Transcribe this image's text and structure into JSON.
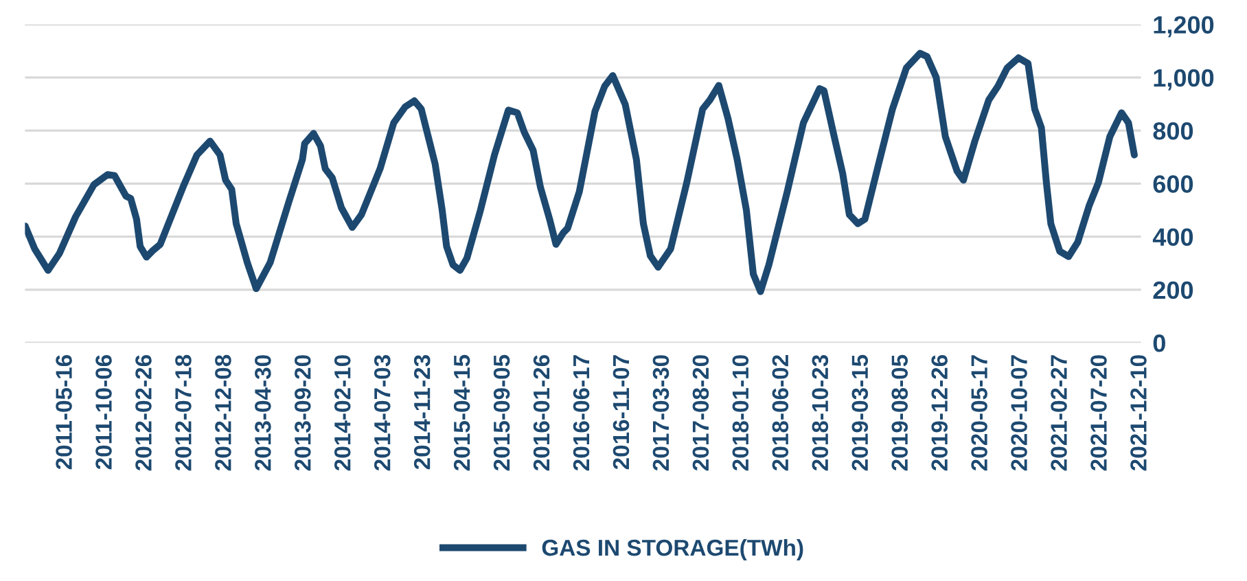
{
  "chart_data": {
    "type": "line",
    "x": [
      "2010-12-21",
      "2011-01-24",
      "2011-03-13",
      "2011-04-23",
      "2011-06-20",
      "2011-08-25",
      "2011-10-13",
      "2011-11-07",
      "2011-12-18",
      "2012-01-04",
      "2012-01-25",
      "2012-02-07",
      "2012-03-01",
      "2012-03-25",
      "2012-04-19",
      "2012-07-10",
      "2012-08-29",
      "2012-10-15",
      "2012-11-20",
      "2012-12-10",
      "2013-01-01",
      "2013-01-17",
      "2013-02-26",
      "2013-03-30",
      "2013-05-19",
      "2013-07-24",
      "2013-09-12",
      "2013-09-20",
      "2013-10-22",
      "2013-11-16",
      "2013-12-03",
      "2013-12-28",
      "2014-01-30",
      "2014-03-10",
      "2014-04-12",
      "2014-06-18",
      "2014-08-06",
      "2014-09-16",
      "2014-10-19",
      "2014-11-13",
      "2014-12-08",
      "2015-01-02",
      "2015-01-27",
      "2015-02-12",
      "2015-03-07",
      "2015-04-01",
      "2015-04-26",
      "2015-06-14",
      "2015-08-03",
      "2015-09-22",
      "2015-10-24",
      "2015-11-18",
      "2015-12-20",
      "2016-01-15",
      "2016-02-17",
      "2016-03-11",
      "2016-04-06",
      "2016-04-22",
      "2016-06-03",
      "2016-07-29",
      "2016-09-02",
      "2016-10-01",
      "2016-11-15",
      "2016-12-25",
      "2017-01-19",
      "2017-02-13",
      "2017-03-13",
      "2017-04-27",
      "2017-06-24",
      "2017-08-20",
      "2017-09-15",
      "2017-10-17",
      "2017-11-19",
      "2017-12-22",
      "2018-01-24",
      "2018-02-18",
      "2018-03-16",
      "2018-04-15",
      "2018-06-20",
      "2018-08-17",
      "2018-10-14",
      "2018-10-30",
      "2018-12-02",
      "2019-01-05",
      "2019-01-29",
      "2019-03-01",
      "2019-03-26",
      "2019-05-14",
      "2019-07-03",
      "2019-08-22",
      "2019-10-10",
      "2019-11-04",
      "2019-12-07",
      "2020-01-09",
      "2020-02-20",
      "2020-03-14",
      "2020-04-24",
      "2020-06-13",
      "2020-07-16",
      "2020-08-18",
      "2020-09-28",
      "2020-11-01",
      "2020-11-25",
      "2020-12-19",
      "2021-01-06",
      "2021-01-22",
      "2021-02-23",
      "2021-03-27",
      "2021-04-29",
      "2021-06-09",
      "2021-07-12",
      "2021-08-22",
      "2021-10-03",
      "2021-10-28",
      "2021-11-18"
    ],
    "series": [
      {
        "name": "GAS IN STORAGE(TWh)",
        "color": "#1d4970",
        "values": [
          440,
          354,
          273,
          337,
          475,
          596,
          634,
          630,
          553,
          544,
          466,
          363,
          323,
          349,
          371,
          587,
          708,
          760,
          708,
          613,
          578,
          449,
          302,
          204,
          302,
          527,
          691,
          751,
          789,
          742,
          656,
          622,
          509,
          435,
          483,
          656,
          829,
          889,
          912,
          881,
          777,
          673,
          501,
          363,
          294,
          273,
          319,
          501,
          708,
          877,
          867,
          794,
          725,
          587,
          466,
          371,
          414,
          432,
          570,
          872,
          967,
          1007,
          898,
          691,
          449,
          328,
          285,
          354,
          604,
          881,
          915,
          970,
          846,
          691,
          501,
          259,
          193,
          294,
          570,
          829,
          958,
          950,
          794,
          639,
          483,
          449,
          466,
          673,
          881,
          1036,
          1091,
          1079,
          1001,
          777,
          647,
          613,
          760,
          915,
          967,
          1036,
          1074,
          1053,
          881,
          811,
          604,
          449,
          345,
          325,
          380,
          518,
          604,
          777,
          867,
          829,
          708
        ]
      }
    ],
    "xlim": [
      "2010-12-20",
      "2021-12-12"
    ],
    "xticks": [
      "2011-05-16",
      "2011-10-06",
      "2012-02-26",
      "2012-07-18",
      "2012-12-08",
      "2013-04-30",
      "2013-09-20",
      "2014-02-10",
      "2014-07-03",
      "2014-11-23",
      "2015-04-15",
      "2015-09-05",
      "2016-01-26",
      "2016-06-17",
      "2016-11-07",
      "2017-03-30",
      "2017-08-20",
      "2018-01-10",
      "2018-06-02",
      "2018-10-23",
      "2019-03-15",
      "2019-08-05",
      "2019-12-26",
      "2020-05-17",
      "2020-10-07",
      "2021-02-27",
      "2021-07-20",
      "2021-12-10"
    ],
    "ylim": [
      0,
      1200
    ],
    "yticks": [
      0,
      200,
      400,
      600,
      800,
      {
        "value": 1000,
        "label": "1,000"
      },
      {
        "value": 1200,
        "label": "1,200"
      }
    ],
    "grid": "y",
    "legend": "bottom",
    "marker": "none",
    "line_style": "solid"
  }
}
